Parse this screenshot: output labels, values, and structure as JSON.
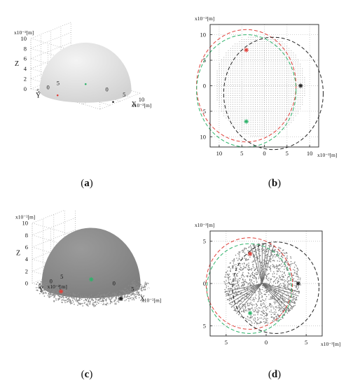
{
  "captions": {
    "a": "a",
    "b": "b",
    "c": "c",
    "d": "d"
  },
  "colors": {
    "red": "#e0403a",
    "green": "#2db36a",
    "black": "#222222",
    "surface_light": "#e4e4e4",
    "surface_dark": "#8c8c8c"
  },
  "chart_data": [
    {
      "panel": "a",
      "type": "scatter",
      "projection": "3d",
      "surface": "hemisphere",
      "axes": {
        "x": {
          "label": "X",
          "ticks": [
            "0",
            "5",
            "10"
          ]
        },
        "y": {
          "label": "Y",
          "ticks": [
            "5",
            "0",
            "5"
          ]
        },
        "z": {
          "label": "Z",
          "ticks": [
            "0",
            "2",
            "4",
            "6",
            "8",
            "10"
          ]
        }
      },
      "unit_labels": [
        "x10⁻²[m]",
        "x10⁻²[m]"
      ],
      "grid": true
    },
    {
      "panel": "b",
      "type": "scatter",
      "unit_labels": [
        "x10⁻²[m]",
        "x10⁻²[m]"
      ],
      "xticks": [
        "10",
        "5",
        "0",
        "5",
        "10"
      ],
      "yticks": [
        "10",
        "5",
        "0",
        "5",
        "10"
      ],
      "xlim": [
        -12,
        12
      ],
      "ylim": [
        -12,
        12
      ],
      "grid": true,
      "markers": [
        {
          "color": "red",
          "x": -4,
          "y": 7
        },
        {
          "color": "green",
          "x": -4,
          "y": -7
        },
        {
          "color": "black",
          "x": 8,
          "y": 0
        }
      ],
      "circles": [
        {
          "color": "red",
          "cx": -4,
          "cy": 0,
          "r": 11
        },
        {
          "color": "green",
          "cx": -4,
          "cy": -1,
          "r": 11
        },
        {
          "color": "black",
          "cx": 2,
          "cy": -1.5,
          "r": 11
        }
      ],
      "disk": {
        "cx": -1,
        "cy": 0,
        "r": 10
      }
    },
    {
      "panel": "c",
      "type": "scatter",
      "projection": "3d",
      "surface": "hemisphere",
      "axes": {
        "x": {
          "label": "X",
          "ticks": [
            "0",
            "5"
          ]
        },
        "y": {
          "label": "Y",
          "ticks": [
            "5",
            "0",
            "5"
          ]
        },
        "z": {
          "label": "Z",
          "ticks": [
            "0",
            "2",
            "4",
            "6",
            "8",
            "10"
          ]
        }
      },
      "unit_labels": [
        "x10⁻²[m]",
        "x10⁻²[m]",
        "x10⁻²[m]"
      ],
      "grid": true
    },
    {
      "panel": "d",
      "type": "scatter",
      "unit_labels": [
        "x10⁻²[m]",
        "x10⁻²[m]"
      ],
      "xticks": [
        "5",
        "0",
        "5"
      ],
      "yticks": [
        "5",
        "0",
        "5"
      ],
      "xlim": [
        -7,
        7
      ],
      "ylim": [
        -6.2,
        6.2
      ],
      "grid": true,
      "markers": [
        {
          "color": "red",
          "x": -2,
          "y": 3.5
        },
        {
          "color": "green",
          "x": -2,
          "y": -3.5
        },
        {
          "color": "black",
          "x": 4,
          "y": 0
        }
      ],
      "circles": [
        {
          "color": "red",
          "cx": -2.1,
          "cy": 0,
          "r": 5.4
        },
        {
          "color": "green",
          "cx": -2.1,
          "cy": -0.6,
          "r": 5.3
        },
        {
          "color": "black",
          "cx": 1.2,
          "cy": -0.5,
          "r": 5.4
        }
      ],
      "disk": {
        "cx": -0.5,
        "cy": 0,
        "r": 4.8
      }
    }
  ]
}
